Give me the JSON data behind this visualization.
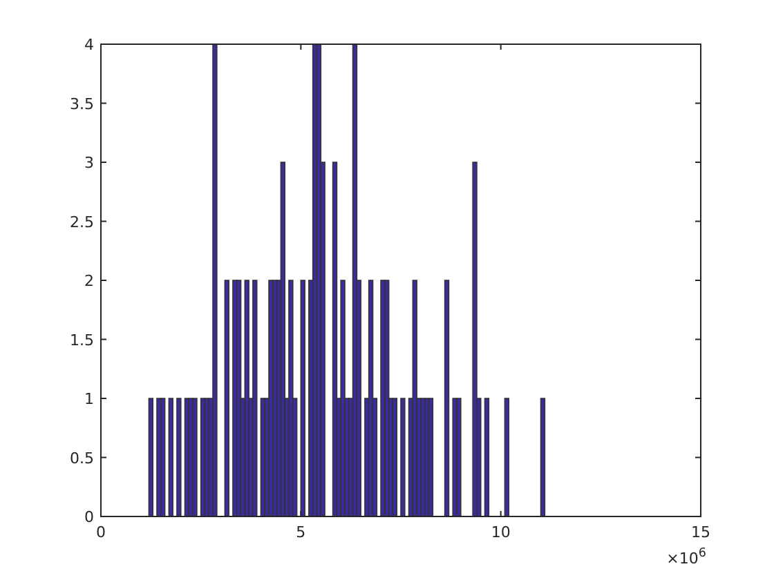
{
  "chart_data": {
    "type": "histogram",
    "color": "#3b2c9c",
    "bins": [
      1.2,
      1.3,
      1.4,
      1.5,
      1.6,
      1.7,
      1.8,
      1.9,
      2.0,
      2.1,
      2.2,
      2.3,
      2.4,
      2.5,
      2.6,
      2.7,
      2.8,
      2.9,
      3.0,
      3.1,
      3.2,
      3.3,
      3.4,
      3.5,
      3.6,
      3.7,
      3.8,
      3.9,
      4.0,
      4.1,
      4.2,
      4.3,
      4.4,
      4.5,
      4.6,
      4.7,
      4.8,
      4.9,
      5.0,
      5.1,
      5.2,
      5.3,
      5.4,
      5.5,
      5.6,
      5.7,
      5.8,
      5.9,
      6.0,
      6.1,
      6.2,
      6.3,
      6.4,
      6.5,
      6.6,
      6.7,
      6.8,
      6.9,
      7.0,
      7.1,
      7.2,
      7.3,
      7.4,
      7.5,
      7.6,
      7.7,
      7.8,
      7.9,
      8.0,
      8.1,
      8.2,
      8.3,
      8.4,
      8.5,
      8.6,
      8.7,
      8.8,
      8.9,
      9.0,
      9.1,
      9.2,
      9.3,
      9.4,
      9.5,
      9.6,
      9.7,
      9.8,
      9.9,
      10.0,
      10.1,
      10.2,
      10.3,
      10.4,
      10.5,
      10.6,
      10.7,
      10.8,
      10.9,
      11.0,
      11.1
    ],
    "values": [
      1,
      0,
      1,
      1,
      0,
      1,
      0,
      1,
      0,
      1,
      1,
      1,
      0,
      1,
      1,
      1,
      4,
      0,
      0,
      2,
      0,
      2,
      2,
      1,
      2,
      1,
      2,
      0,
      1,
      1,
      2,
      2,
      2,
      3,
      1,
      2,
      1,
      0,
      2,
      0,
      2,
      4,
      4,
      3,
      0,
      0,
      3,
      1,
      2,
      1,
      1,
      4,
      2,
      0,
      1,
      2,
      1,
      0,
      2,
      2,
      1,
      1,
      0,
      1,
      0,
      1,
      2,
      1,
      1,
      1,
      1,
      0,
      0,
      0,
      2,
      0,
      1,
      1,
      0,
      0,
      0,
      3,
      1,
      0,
      1,
      0,
      0,
      0,
      0,
      1,
      0,
      0,
      0,
      0,
      0,
      0,
      0,
      0,
      1
    ],
    "xlim": [
      0,
      15
    ],
    "xticks": [
      0,
      5,
      10,
      15
    ],
    "ylim": [
      0,
      4
    ],
    "yticks": [
      0,
      0.5,
      1,
      1.5,
      2,
      2.5,
      3,
      3.5,
      4
    ],
    "annotations": [
      "×10$^{6}$"
    ],
    "grid": false
  }
}
